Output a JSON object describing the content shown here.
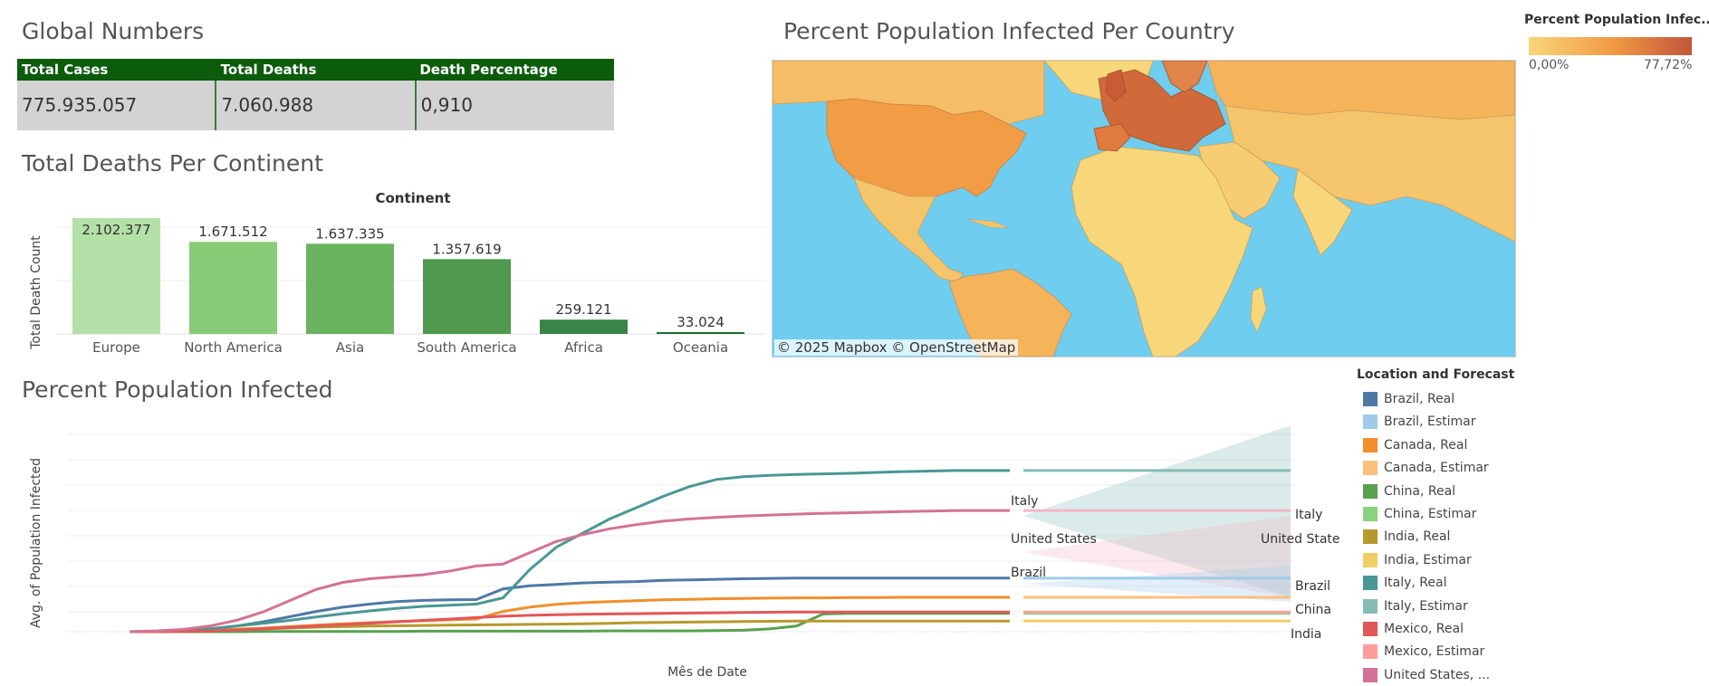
{
  "global": {
    "title": "Global Numbers",
    "headers": [
      "Total Cases",
      "Total Deaths",
      "Death Percentage"
    ],
    "values": [
      "775.935.057",
      "7.060.988",
      "0,910"
    ]
  },
  "deaths": {
    "title": "Total Deaths Per Continent",
    "header": "Continent",
    "ylabel": "Total Death Count"
  },
  "map": {
    "title": "Percent Population Infected Per Country",
    "credit": "© 2025 Mapbox  © OpenStreetMap",
    "legend_title": "Percent Population Infec...",
    "legend_min": "0,00%",
    "legend_max": "77,72%",
    "color_low": "#f8d67a",
    "color_high": "#c2553a"
  },
  "infected": {
    "title": "Percent Population Infected",
    "xlabel": "Mês de Date",
    "ylabel": "Avg. of Population Infected",
    "legend_title": "Location and Forecast",
    "legend_items": [
      {
        "label": "Brazil, Real",
        "color": "#4e79a7"
      },
      {
        "label": "Brazil, Estimar",
        "color": "#a0cbe8"
      },
      {
        "label": "Canada, Real",
        "color": "#f28e2b"
      },
      {
        "label": "Canada, Estimar",
        "color": "#ffbe7d"
      },
      {
        "label": "China, Real",
        "color": "#59a14f"
      },
      {
        "label": "China, Estimar",
        "color": "#8cd17d"
      },
      {
        "label": "India, Real",
        "color": "#b6992d"
      },
      {
        "label": "India, Estimar",
        "color": "#f1ce63"
      },
      {
        "label": "Italy, Real",
        "color": "#499894"
      },
      {
        "label": "Italy, Estimar",
        "color": "#86bcb6"
      },
      {
        "label": "Mexico, Real",
        "color": "#e15759"
      },
      {
        "label": "Mexico, Estimar",
        "color": "#ff9d9a"
      },
      {
        "label": "United States, ...",
        "color": "#d37295"
      }
    ],
    "line_labels": {
      "italy_mid": "Italy",
      "us_mid": "United States",
      "brazil_mid": "Brazil",
      "italy_end": "Italy",
      "us_end": "United States",
      "brazil_end": "Brazil",
      "china_end": "China",
      "india_end": "India"
    }
  },
  "chart_data": [
    {
      "type": "bar",
      "title": "Total Deaths Per Continent",
      "xlabel": "Continent",
      "ylabel": "Total Death Count",
      "categories": [
        "Europe",
        "North America",
        "Asia",
        "South America",
        "Africa",
        "Oceania"
      ],
      "values": [
        2102377,
        1671512,
        1637335,
        1357619,
        259121,
        33024
      ],
      "value_labels": [
        "2.102.377",
        "1.671.512",
        "1.637.335",
        "1.357.619",
        "259.121",
        "33.024"
      ],
      "colors": [
        "#b3e0a6",
        "#88cc77",
        "#6ab35f",
        "#4f9a4f",
        "#3a8448",
        "#1f6b35"
      ],
      "ylim": [
        0,
        2102377
      ],
      "grid": true
    },
    {
      "type": "line",
      "title": "Percent Population Infected",
      "xlabel": "Mês de Date",
      "ylabel": "Avg. of Population Infected",
      "x": [
        0,
        1,
        2,
        3,
        4,
        5,
        6,
        7,
        8,
        9,
        10,
        11,
        12,
        13,
        14,
        15,
        16,
        17,
        18,
        19,
        20,
        21,
        22,
        23,
        24,
        25,
        26,
        27,
        28,
        29,
        30,
        31,
        32,
        33
      ],
      "series": [
        {
          "name": "Brazil, Real",
          "values": [
            0,
            0.1,
            0.4,
            1.0,
            2.0,
            3.5,
            5.3,
            7.2,
            8.7,
            9.8,
            10.7,
            11.1,
            11.3,
            11.4,
            15.2,
            16.3,
            16.8,
            17.3,
            17.6,
            17.8,
            18.2,
            18.4,
            18.6,
            18.8,
            18.9,
            19.0,
            19.0,
            19.0,
            19.0,
            19.0,
            19.0,
            19.0,
            19.0,
            19.0
          ]
        },
        {
          "name": "Canada, Real",
          "values": [
            0,
            0.1,
            0.2,
            0.5,
            0.9,
            1.3,
            1.8,
            2.3,
            2.8,
            3.2,
            3.6,
            3.9,
            4.2,
            4.5,
            7.2,
            8.7,
            9.7,
            10.3,
            10.7,
            11.0,
            11.3,
            11.5,
            11.7,
            11.8,
            11.9,
            12.0,
            12.0,
            12.1,
            12.1,
            12.2,
            12.2,
            12.2,
            12.2,
            12.2
          ]
        },
        {
          "name": "China, Real",
          "values": [
            0,
            0.0,
            0.0,
            0.0,
            0.0,
            0.1,
            0.1,
            0.1,
            0.1,
            0.1,
            0.1,
            0.2,
            0.2,
            0.2,
            0.2,
            0.2,
            0.2,
            0.2,
            0.3,
            0.3,
            0.3,
            0.3,
            0.4,
            0.5,
            1.0,
            2.0,
            6.3,
            6.5,
            6.5,
            6.5,
            6.5,
            6.5,
            6.5,
            6.5
          ]
        },
        {
          "name": "India, Real",
          "values": [
            0,
            0.0,
            0.1,
            0.3,
            0.6,
            1.0,
            1.3,
            1.6,
            1.8,
            2.0,
            2.1,
            2.2,
            2.3,
            2.4,
            2.5,
            2.6,
            2.7,
            2.8,
            3.0,
            3.2,
            3.3,
            3.4,
            3.5,
            3.6,
            3.7,
            3.8,
            3.8,
            3.8,
            3.8,
            3.8,
            3.8,
            3.8,
            3.8,
            3.8
          ]
        },
        {
          "name": "Italy, Real",
          "values": [
            0,
            0.1,
            0.4,
            1.0,
            2.0,
            3.0,
            4.0,
            5.2,
            6.4,
            7.4,
            8.3,
            9.0,
            9.4,
            9.8,
            12.0,
            22.0,
            30.0,
            35.0,
            40.0,
            44.0,
            48.0,
            51.5,
            54.0,
            55.0,
            55.5,
            55.8,
            56.0,
            56.2,
            56.5,
            56.8,
            57.0,
            57.2,
            57.2,
            57.2
          ]
        },
        {
          "name": "Mexico, Real",
          "values": [
            0,
            0.0,
            0.1,
            0.3,
            0.6,
            1.0,
            1.5,
            2.0,
            2.5,
            3.0,
            3.5,
            4.0,
            4.5,
            5.0,
            5.5,
            5.8,
            6.0,
            6.2,
            6.3,
            6.4,
            6.5,
            6.6,
            6.7,
            6.8,
            6.9,
            7.0,
            7.0,
            7.0,
            7.0,
            7.0,
            7.0,
            7.0,
            7.0,
            7.0
          ]
        },
        {
          "name": "United States, ...",
          "values": [
            0,
            0.3,
            0.8,
            2.0,
            4.0,
            7.0,
            11.0,
            15.0,
            17.5,
            18.8,
            19.5,
            20.2,
            21.5,
            23.3,
            24.0,
            28.0,
            32.0,
            34.5,
            36.5,
            38.0,
            39.2,
            40.0,
            40.6,
            41.0,
            41.4,
            41.7,
            42.0,
            42.2,
            42.4,
            42.6,
            42.8,
            43.0,
            43.0,
            43.0
          ]
        }
      ],
      "grid": true,
      "legend": "right"
    }
  ]
}
